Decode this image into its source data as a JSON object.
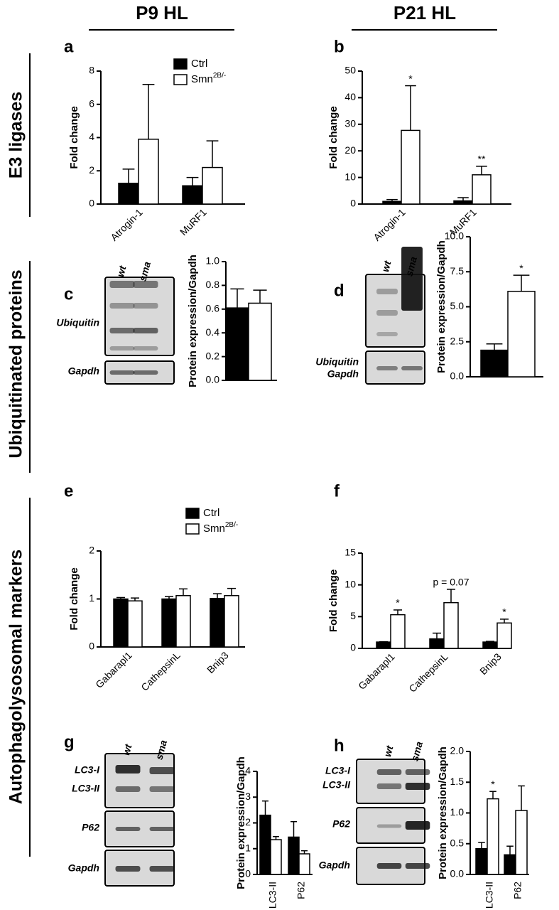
{
  "column_headers": [
    "P9 HL",
    "P21 HL"
  ],
  "row_labels": [
    "E3 ligases",
    "Ubiquitinated proteins",
    "Autophagolysosomal markers"
  ],
  "panel_letters": [
    "a",
    "b",
    "c",
    "d",
    "e",
    "f",
    "g",
    "h"
  ],
  "blots": [
    {
      "lanes": [
        "wt",
        "sma"
      ],
      "bands": [
        "Ubiquitin",
        "Gapdh"
      ]
    },
    {
      "lanes": [
        "wt",
        "sma"
      ],
      "bands": [
        "Ubiquitin",
        "Gapdh"
      ]
    },
    {
      "lanes": [
        "wt",
        "sma"
      ],
      "bands": [
        "LC3-I",
        "LC3-II",
        "P62",
        "Gapdh"
      ]
    },
    {
      "lanes": [
        "wt",
        "sma"
      ],
      "bands": [
        "LC3-I",
        "LC3-II",
        "P62",
        "Gapdh"
      ]
    }
  ],
  "chart_data": [
    {
      "type": "bar",
      "ylabel": "Fold change",
      "categories": [
        "Atrogin-1",
        "MuRF1"
      ],
      "ylim": [
        0,
        8
      ],
      "yticks": [
        0,
        2,
        4,
        6,
        8
      ],
      "series": [
        {
          "name": "Ctrl",
          "color": "#000000",
          "values": [
            1.25,
            1.1
          ],
          "errors": [
            0.85,
            0.5
          ]
        },
        {
          "name": "Smn",
          "name_superscript": "2B/-",
          "color": "#ffffff",
          "values": [
            3.9,
            2.2
          ],
          "errors": [
            3.3,
            1.6
          ]
        }
      ]
    },
    {
      "type": "bar",
      "ylabel": "Fold change",
      "categories": [
        "Atrogin-1",
        "MuRF1"
      ],
      "ylim": [
        0,
        50
      ],
      "yticks": [
        0,
        10,
        20,
        30,
        40,
        50
      ],
      "series": [
        {
          "color": "#000000",
          "values": [
            1.0,
            1.2
          ],
          "errors": [
            0.7,
            1.2
          ]
        },
        {
          "color": "#ffffff",
          "values": [
            27.7,
            11
          ],
          "errors": [
            16.8,
            3.2
          ],
          "significance": [
            "*",
            "**"
          ]
        }
      ]
    },
    {
      "type": "bar",
      "ylabel": "Protein expression/Gapdh",
      "ylim": [
        0,
        1
      ],
      "yticks": [
        {
          "value": 0,
          "label": "0.0"
        },
        0.2,
        0.4,
        0.6,
        0.8,
        {
          "value": 1,
          "label": "1.0"
        }
      ],
      "series": [
        {
          "color": "#000000",
          "values": [
            0.61
          ],
          "errors": [
            0.16
          ]
        },
        {
          "color": "#ffffff",
          "values": [
            0.65
          ],
          "errors": [
            0.11
          ]
        }
      ]
    },
    {
      "type": "bar",
      "ylabel": "Protein expression/Gapdh",
      "ylim": [
        0,
        10
      ],
      "yticks": [
        {
          "value": 0,
          "label": "0.0"
        },
        2.5,
        {
          "value": 5,
          "label": "5.0"
        },
        7.5,
        {
          "value": 10,
          "label": "10.0"
        }
      ],
      "series": [
        {
          "color": "#000000",
          "values": [
            1.9
          ],
          "errors": [
            0.45
          ]
        },
        {
          "color": "#ffffff",
          "values": [
            6.1
          ],
          "errors": [
            1.15
          ],
          "significance": [
            "*"
          ]
        }
      ]
    },
    {
      "type": "bar",
      "ylabel": "Fold change",
      "categories": [
        "Gabarapl1",
        "CathepsinL",
        "Bnip3"
      ],
      "ylim": [
        0,
        2
      ],
      "yticks": [
        0,
        1,
        2
      ],
      "series": [
        {
          "name": "Ctrl",
          "color": "#000000",
          "values": [
            1.0,
            1.0,
            1.01
          ],
          "errors": [
            0.03,
            0.05,
            0.1
          ]
        },
        {
          "name": "Smn",
          "name_superscript": "2B/-",
          "color": "#ffffff",
          "values": [
            0.96,
            1.07,
            1.07
          ],
          "errors": [
            0.06,
            0.14,
            0.15
          ]
        }
      ]
    },
    {
      "type": "bar",
      "ylabel": "Fold change",
      "categories": [
        "Gabarapl1",
        "CathepsinL",
        "Bnip3"
      ],
      "ylim": [
        0,
        15
      ],
      "yticks": [
        0,
        5,
        10,
        15
      ],
      "series": [
        {
          "color": "#000000",
          "values": [
            1.0,
            1.5,
            1.0
          ],
          "errors": [
            0.05,
            0.9,
            0.1
          ]
        },
        {
          "color": "#ffffff",
          "values": [
            5.3,
            7.2,
            4.0
          ],
          "errors": [
            0.75,
            2.1,
            0.6
          ],
          "significance": [
            "*",
            "p = 0.07",
            "*"
          ]
        }
      ]
    },
    {
      "type": "bar",
      "ylabel": "Protein expression/Gapdh",
      "categories": [
        "LC3-II",
        "P62"
      ],
      "ylim": [
        0,
        4
      ],
      "yticks": [
        0,
        1,
        2,
        3,
        4
      ],
      "series": [
        {
          "color": "#000000",
          "values": [
            2.3,
            1.45
          ],
          "errors": [
            0.55,
            0.6
          ]
        },
        {
          "color": "#ffffff",
          "values": [
            1.35,
            0.8
          ],
          "errors": [
            0.12,
            0.12
          ]
        }
      ]
    },
    {
      "type": "bar",
      "ylabel": "Protein expression/Gapdh",
      "categories": [
        "LC3-II",
        "P62"
      ],
      "ylim": [
        0,
        2
      ],
      "yticks": [
        {
          "value": 0,
          "label": "0.0"
        },
        0.5,
        {
          "value": 1,
          "label": "1.0"
        },
        1.5,
        {
          "value": 2,
          "label": "2.0"
        }
      ],
      "series": [
        {
          "color": "#000000",
          "values": [
            0.42,
            0.32
          ],
          "errors": [
            0.1,
            0.14
          ]
        },
        {
          "color": "#ffffff",
          "values": [
            1.23,
            1.04
          ],
          "errors": [
            0.12,
            0.4
          ],
          "significance": [
            "*",
            null
          ]
        }
      ]
    }
  ]
}
